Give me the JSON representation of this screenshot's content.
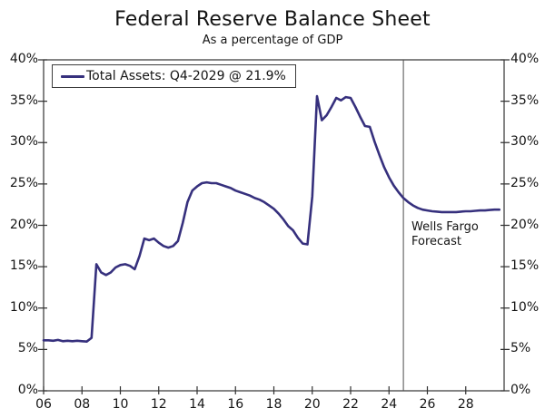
{
  "colors": {
    "line": "#36307d",
    "axis": "#333333",
    "divider": "#4d4d4d",
    "text": "#141414",
    "background": "#ffffff"
  },
  "chart_data": {
    "type": "line",
    "title": "Federal Reserve Balance Sheet",
    "subtitle": "As a percentage of GDP",
    "xlabel": "",
    "ylabel": "",
    "grid": false,
    "legend_position": "top-left",
    "x_range": [
      2006,
      2030
    ],
    "y_range": [
      0,
      40
    ],
    "y_ticks": [
      {
        "value": 0,
        "label": "0%"
      },
      {
        "value": 5,
        "label": "5%"
      },
      {
        "value": 10,
        "label": "10%"
      },
      {
        "value": 15,
        "label": "15%"
      },
      {
        "value": 20,
        "label": "20%"
      },
      {
        "value": 25,
        "label": "25%"
      },
      {
        "value": 30,
        "label": "30%"
      },
      {
        "value": 35,
        "label": "35%"
      },
      {
        "value": 40,
        "label": "40%"
      }
    ],
    "x_ticks": [
      {
        "value": 2006,
        "label": "06"
      },
      {
        "value": 2008,
        "label": "08"
      },
      {
        "value": 2010,
        "label": "10"
      },
      {
        "value": 2012,
        "label": "12"
      },
      {
        "value": 2014,
        "label": "14"
      },
      {
        "value": 2016,
        "label": "16"
      },
      {
        "value": 2018,
        "label": "18"
      },
      {
        "value": 2020,
        "label": "20"
      },
      {
        "value": 2022,
        "label": "22"
      },
      {
        "value": 2024,
        "label": "24"
      },
      {
        "value": 2026,
        "label": "26"
      },
      {
        "value": 2028,
        "label": "28"
      }
    ],
    "legend": [
      {
        "label": "Total Assets: Q4-2029 @ 21.9%",
        "color": "#36307d"
      }
    ],
    "annotation": {
      "lines": [
        "Wells Fargo",
        "Forecast"
      ]
    },
    "forecast_divider_x": 2024.75,
    "series": [
      {
        "name": "Total Assets",
        "points": [
          [
            2006.0,
            6.1
          ],
          [
            2006.25,
            6.1
          ],
          [
            2006.5,
            6.05
          ],
          [
            2006.75,
            6.15
          ],
          [
            2007.0,
            6.0
          ],
          [
            2007.25,
            6.05
          ],
          [
            2007.5,
            6.0
          ],
          [
            2007.75,
            6.05
          ],
          [
            2008.0,
            6.0
          ],
          [
            2008.25,
            5.95
          ],
          [
            2008.5,
            6.4
          ],
          [
            2008.75,
            15.3
          ],
          [
            2009.0,
            14.3
          ],
          [
            2009.25,
            14.0
          ],
          [
            2009.5,
            14.3
          ],
          [
            2009.75,
            14.9
          ],
          [
            2010.0,
            15.2
          ],
          [
            2010.25,
            15.3
          ],
          [
            2010.5,
            15.1
          ],
          [
            2010.75,
            14.7
          ],
          [
            2011.0,
            16.3
          ],
          [
            2011.25,
            18.4
          ],
          [
            2011.5,
            18.2
          ],
          [
            2011.75,
            18.4
          ],
          [
            2012.0,
            17.9
          ],
          [
            2012.25,
            17.5
          ],
          [
            2012.5,
            17.3
          ],
          [
            2012.75,
            17.5
          ],
          [
            2013.0,
            18.1
          ],
          [
            2013.25,
            20.3
          ],
          [
            2013.5,
            22.8
          ],
          [
            2013.75,
            24.2
          ],
          [
            2014.0,
            24.7
          ],
          [
            2014.25,
            25.1
          ],
          [
            2014.5,
            25.2
          ],
          [
            2014.75,
            25.1
          ],
          [
            2015.0,
            25.1
          ],
          [
            2015.25,
            24.9
          ],
          [
            2015.5,
            24.7
          ],
          [
            2015.75,
            24.5
          ],
          [
            2016.0,
            24.2
          ],
          [
            2016.25,
            24.0
          ],
          [
            2016.5,
            23.8
          ],
          [
            2016.75,
            23.6
          ],
          [
            2017.0,
            23.3
          ],
          [
            2017.25,
            23.1
          ],
          [
            2017.5,
            22.8
          ],
          [
            2017.75,
            22.4
          ],
          [
            2018.0,
            22.0
          ],
          [
            2018.25,
            21.4
          ],
          [
            2018.5,
            20.7
          ],
          [
            2018.75,
            19.9
          ],
          [
            2019.0,
            19.4
          ],
          [
            2019.25,
            18.5
          ],
          [
            2019.5,
            17.8
          ],
          [
            2019.75,
            17.7
          ],
          [
            2020.0,
            23.5
          ],
          [
            2020.25,
            35.6
          ],
          [
            2020.5,
            32.7
          ],
          [
            2020.75,
            33.3
          ],
          [
            2021.0,
            34.3
          ],
          [
            2021.25,
            35.4
          ],
          [
            2021.5,
            35.1
          ],
          [
            2021.75,
            35.5
          ],
          [
            2022.0,
            35.4
          ],
          [
            2022.25,
            34.3
          ],
          [
            2022.5,
            33.1
          ],
          [
            2022.75,
            32.0
          ],
          [
            2023.0,
            31.9
          ],
          [
            2023.25,
            30.1
          ],
          [
            2023.5,
            28.5
          ],
          [
            2023.75,
            27.0
          ],
          [
            2024.0,
            25.8
          ],
          [
            2024.25,
            24.8
          ],
          [
            2024.5,
            24.0
          ],
          [
            2024.75,
            23.3
          ],
          [
            2025.0,
            22.8
          ],
          [
            2025.25,
            22.4
          ],
          [
            2025.5,
            22.1
          ],
          [
            2025.75,
            21.9
          ],
          [
            2026.0,
            21.8
          ],
          [
            2026.25,
            21.7
          ],
          [
            2026.5,
            21.65
          ],
          [
            2026.75,
            21.6
          ],
          [
            2027.0,
            21.6
          ],
          [
            2027.25,
            21.6
          ],
          [
            2027.5,
            21.6
          ],
          [
            2027.75,
            21.65
          ],
          [
            2028.0,
            21.7
          ],
          [
            2028.25,
            21.7
          ],
          [
            2028.5,
            21.75
          ],
          [
            2028.75,
            21.8
          ],
          [
            2029.0,
            21.8
          ],
          [
            2029.25,
            21.85
          ],
          [
            2029.5,
            21.9
          ],
          [
            2029.75,
            21.9
          ]
        ]
      }
    ]
  }
}
